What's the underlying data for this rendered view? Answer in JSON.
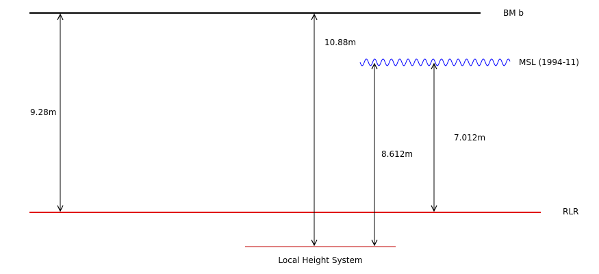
{
  "colors": {
    "line_black": "#000000",
    "rlr_red": "#e00000",
    "local_red": "#c00000",
    "msl_blue": "#0000ff"
  },
  "levels": {
    "bm": {
      "label": "BM b"
    },
    "msl": {
      "label": "MSL (1994-11)"
    },
    "rlr": {
      "label": "RLR"
    },
    "local": {
      "label": "Local Height System"
    }
  },
  "measurements": {
    "bm_to_rlr": "9.28m",
    "bm_to_local": "10.88m",
    "msl_to_local": "8.612m",
    "msl_to_rlr": "7.012m"
  }
}
